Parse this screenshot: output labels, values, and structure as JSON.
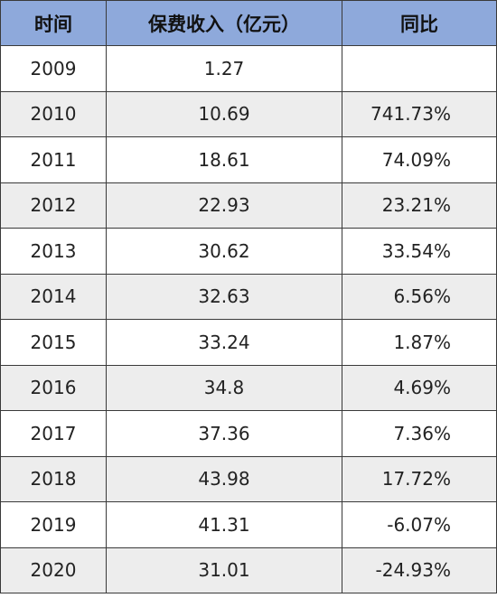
{
  "table": {
    "headers": [
      "时间",
      "保费收入（亿元）",
      "同比"
    ],
    "rows": [
      {
        "year": "2009",
        "revenue": "1.27",
        "yoy": ""
      },
      {
        "year": "2010",
        "revenue": "10.69",
        "yoy": "741.73%"
      },
      {
        "year": "2011",
        "revenue": "18.61",
        "yoy": "74.09%"
      },
      {
        "year": "2012",
        "revenue": "22.93",
        "yoy": "23.21%"
      },
      {
        "year": "2013",
        "revenue": "30.62",
        "yoy": "33.54%"
      },
      {
        "year": "2014",
        "revenue": "32.63",
        "yoy": "6.56%"
      },
      {
        "year": "2015",
        "revenue": "33.24",
        "yoy": "1.87%"
      },
      {
        "year": "2016",
        "revenue": "34.8",
        "yoy": "4.69%"
      },
      {
        "year": "2017",
        "revenue": "37.36",
        "yoy": "7.36%"
      },
      {
        "year": "2018",
        "revenue": "43.98",
        "yoy": "17.72%"
      },
      {
        "year": "2019",
        "revenue": "41.31",
        "yoy": "-6.07%"
      },
      {
        "year": "2020",
        "revenue": "31.01",
        "yoy": "-24.93%"
      }
    ]
  },
  "colors": {
    "header_bg": "#8ea9db",
    "row_alt_bg": "#ededed",
    "row_bg": "#ffffff",
    "border": "#3a3a3a"
  }
}
